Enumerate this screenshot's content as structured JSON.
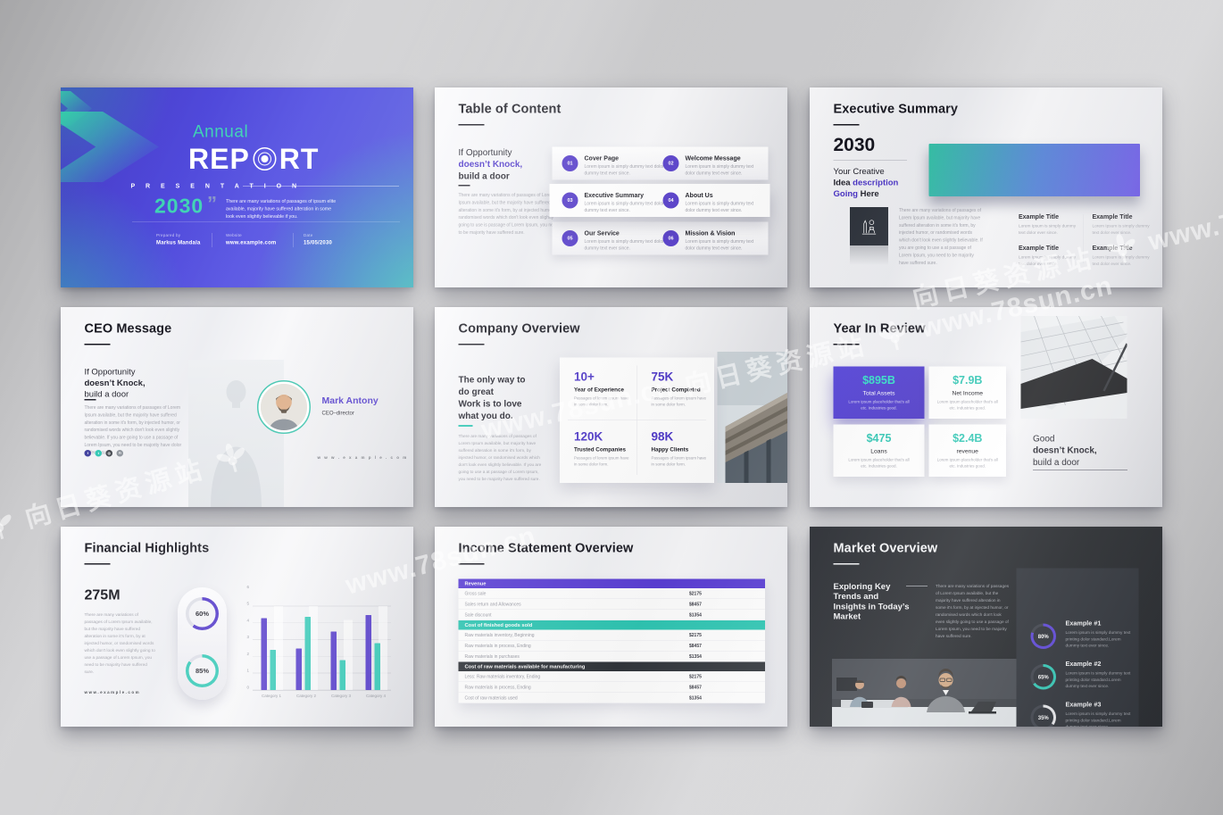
{
  "watermarks": {
    "site": "www.78sun.cn",
    "site_cn": "向日葵资源站"
  },
  "cover": {
    "annual": "Annual",
    "report_left": "REP",
    "report_right": "RT",
    "presentation": "P R E S E N T A T I O N",
    "year": "2030",
    "quote_glyph": "”",
    "blurb": "There are many variations of passages of ipsum elite available, majority have suffered alteration in some look even slightly believable if you.",
    "footer": {
      "prepared_label": "Prepared by",
      "prepared_value": "Markus Mandala",
      "website_label": "Website",
      "website_value": "www.example.com",
      "date_label": "Date",
      "date_value": "15/05/2030"
    }
  },
  "toc": {
    "title": "Table of Content",
    "lead_1": "If Opportunity",
    "lead_2": "doesn’t Knock,",
    "lead_3": "build a door",
    "para": "There are many variations of passages of Lorem Ipsum available, but the majority have suffered alteration in some it's form, by at injected humor, or randomised words which don't look even slightly going to use is passage of Lorem Ipsum, you need to be majority have suffered sure.",
    "item_desc": "Lorem ipsum is simply dummy text dolor dummy text ever since.",
    "items": [
      {
        "num": "01",
        "label": "Cover Page"
      },
      {
        "num": "02",
        "label": "Welcome Message"
      },
      {
        "num": "03",
        "label": "Executive Summary"
      },
      {
        "num": "04",
        "label": "About Us"
      },
      {
        "num": "05",
        "label": "Our Service"
      },
      {
        "num": "06",
        "label": "Mission & Vision"
      }
    ]
  },
  "executive": {
    "title": "Executive Summary",
    "year": "2030",
    "lead_1": "Your Creative",
    "lead_2a": "Idea ",
    "lead_2b": "description",
    "lead_3a": "Going",
    "lead_3b": " Here",
    "para": "There are many variations of passages of Lorem Ipsum available, but majority have suffered alteration in some it's form, by injected humor, or randomised words which don't look even slightly believable. If you are going to use a at passage of Lorem Ipsum, you need to be majority have suffered sure.",
    "example_title": "Example Title",
    "example_desc": "Lorem Ipsum is simply dummy text dolor ever since."
  },
  "ceo": {
    "title": "CEO Message",
    "lead_1": "If Opportunity",
    "lead_2": "doesn’t Knock,",
    "lead_3": "build a door",
    "para": "There are many variations of passages of Lorem Ipsum available, but the majority have suffered alteration in some it's form, by injected humor, or randomised words which don't look even slightly believable. If you are going to use a passage of Lorem Ipsum, you need to be majority have dolor suffered sure.",
    "name": "Mark Antony",
    "role": "CEO–director",
    "site": "w w w . e x a m p l e . c o m",
    "social": [
      "facebook",
      "twitter",
      "instagram",
      "linkedin"
    ],
    "social_glyphs": {
      "facebook": "f",
      "twitter": "t",
      "instagram": "◎",
      "linkedin": "in"
    }
  },
  "company": {
    "title": "Company Overview",
    "lead_lines": [
      "The only way to",
      "do great",
      "Work is to love",
      "what you do."
    ],
    "para": "There are many variations of passages of Lorem Ipsum available, but majority have suffered alteration in some it's form, by injected humor, or randomised words which don't look even slightly believable. If you are going to use a at passage of Lorem Ipsum, you need to be majority have suffered sure.",
    "stat_desc": "Passages of lorem ipsum have in some dolor form.",
    "stats": [
      {
        "value": "10+",
        "label": "Year of Experience"
      },
      {
        "value": "75K",
        "label": "Project Completed"
      },
      {
        "value": "120K",
        "label": "Trusted Companies"
      },
      {
        "value": "98K",
        "label": "Happy Clients"
      }
    ]
  },
  "year_review": {
    "title": "Year In Review",
    "card_desc": "Lorem ipsum placeholder that's all etc. Industries good.",
    "cards": [
      {
        "value": "$895B",
        "label": "Total Assets"
      },
      {
        "value": "$7.9B",
        "label": "Net Income"
      },
      {
        "value": "$475",
        "label": "Loans"
      },
      {
        "value": "$2.4B",
        "label": "revenue"
      }
    ],
    "tag_1": "Good",
    "tag_2": "doesn’t Knock,",
    "tag_3": "build a door"
  },
  "financial": {
    "title": "Financial Highlights",
    "big_number": "275M",
    "para": "There are many variations of passages of Lorem Ipsum available, but the majority have suffered alteration in some it's form, by at injected humor, or randomised words which don't look even slightly going to use a passage of Lorem Ipsum, you need to be majority have suffered sure.",
    "site": "www.example.com",
    "donuts": [
      {
        "pct": 60,
        "label": "60%",
        "color": "#4f35c8",
        "track": "#dcdde6"
      },
      {
        "pct": 85,
        "label": "85%",
        "color": "#2fc7b4",
        "track": "#dcdde6"
      }
    ]
  },
  "income": {
    "title": "Income Statement Overview",
    "sections": [
      {
        "header": "Revenue",
        "color": "#5b3fd6",
        "rows": [
          {
            "label": "Gross sale",
            "value": "$2175"
          },
          {
            "label": "Sales return and Allowances",
            "value": "$8457"
          },
          {
            "label": "Sale discount",
            "value": "$1354"
          }
        ]
      },
      {
        "header": "Cost of finished goods sold",
        "color": "#2fc7b4",
        "rows": [
          {
            "label": "Raw materials inventory, Beginning",
            "value": "$2175"
          },
          {
            "label": "Raw materials in process, Ending",
            "value": "$8457"
          },
          {
            "label": "Raw materials in purchases",
            "value": "$1354"
          }
        ]
      },
      {
        "header": "Cost of raw materials available for manufacturing",
        "color": "#32363c",
        "rows": [
          {
            "label": "Less: Raw materials inventory, Ending",
            "value": "$2175"
          },
          {
            "label": "Raw materials in process, Ending",
            "value": "$8457"
          },
          {
            "label": "Cost of raw materials used",
            "value": "$1354"
          }
        ]
      }
    ]
  },
  "market": {
    "title": "Market Overview",
    "lead_lines": [
      "Exploring Key",
      "Trends and",
      "Insights in Today’s",
      "Market"
    ],
    "para": "There are many variations of passages of Lorem Ipsum available, but the majority have suffered alteration in some it's form, by at injected humor, or randomised words which don't look even slightly going to use a passage of Lorem Ipsum, you need to be majority have suffered sure.",
    "ring_desc": "Lorem ipsum is simply dummy text printing dolor standard.Lorem dummy text ever since.",
    "rings": [
      {
        "pct": 80,
        "label": "80%",
        "title": "Example #1",
        "color": "#5a43d8",
        "track": "#3c4049"
      },
      {
        "pct": 65,
        "label": "65%",
        "title": "Example #2",
        "color": "#2fc7b4",
        "track": "#3c4049"
      },
      {
        "pct": 35,
        "label": "35%",
        "title": "Example #3",
        "color": "#e8e9ec",
        "track": "#3c4049"
      }
    ]
  },
  "chart_data": [
    {
      "type": "bar",
      "title": "Financial Highlights grouped bar chart",
      "categories": [
        "Category 1",
        "Category 2",
        "Category 3",
        "Category 4"
      ],
      "series": [
        {
          "name": "Series A (purple)",
          "color": "#4f35c8",
          "values": [
            4.3,
            2.5,
            3.5,
            4.5
          ]
        },
        {
          "name": "Series B (teal)",
          "color": "#2fc7b4",
          "values": [
            2.4,
            4.4,
            1.8,
            2.8
          ]
        }
      ],
      "ylim": [
        0,
        6
      ],
      "yticks": [
        "0",
        "1",
        "2",
        "3",
        "4",
        "5",
        "6"
      ],
      "grid": true,
      "legend": false
    },
    {
      "type": "pie",
      "title": "Financial Highlights donut gauges",
      "labels": [
        "60%",
        "85%"
      ],
      "values": [
        60,
        85
      ]
    },
    {
      "type": "pie",
      "title": "Market Overview progress rings",
      "labels": [
        "Example #1",
        "Example #2",
        "Example #3"
      ],
      "values": [
        80,
        65,
        35
      ]
    }
  ]
}
